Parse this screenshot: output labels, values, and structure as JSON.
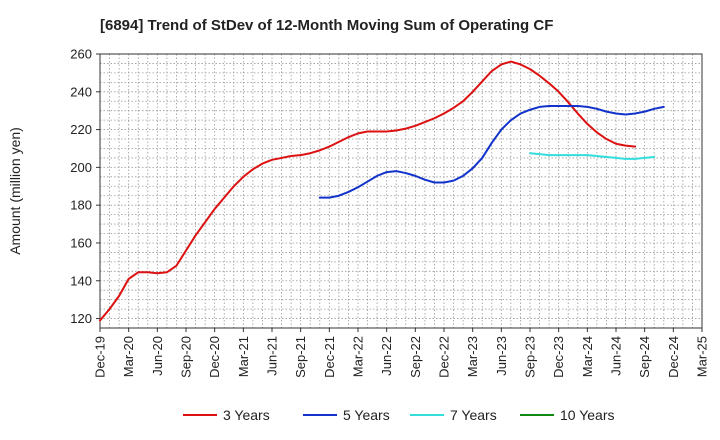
{
  "chart_data": {
    "type": "line",
    "title": "[6894]  Trend of StDev of 12-Month Moving Sum of Operating CF",
    "xlabel": "",
    "ylabel": "Amount (million yen)",
    "ylim": [
      115,
      260
    ],
    "yticks": [
      120,
      140,
      160,
      180,
      200,
      220,
      240,
      260
    ],
    "xticks": [
      "Dec-19",
      "Mar-20",
      "Jun-20",
      "Sep-20",
      "Dec-20",
      "Mar-21",
      "Jun-21",
      "Sep-21",
      "Dec-21",
      "Mar-22",
      "Jun-22",
      "Sep-22",
      "Dec-22",
      "Mar-23",
      "Jun-23",
      "Sep-23",
      "Dec-23",
      "Mar-24",
      "Jun-24",
      "Sep-24",
      "Dec-24",
      "Mar-25"
    ],
    "grid": true,
    "legend_position": "bottom",
    "series": [
      {
        "name": "3 Years",
        "color": "#dd1111",
        "start": "Dec-19",
        "values": [
          119,
          125,
          132,
          141,
          144.5,
          144.5,
          144,
          144.5,
          148,
          156,
          164,
          171,
          178,
          184,
          190,
          195,
          199,
          202,
          204,
          205,
          206,
          206.5,
          207.5,
          209,
          211,
          213.5,
          216,
          218,
          219,
          219,
          219,
          219.5,
          220.5,
          222,
          224,
          226,
          228.5,
          231.5,
          235,
          240,
          245.5,
          251,
          254.5,
          256,
          254.5,
          252,
          248.5,
          244.5,
          240,
          234.5,
          228.5,
          223,
          218.5,
          215,
          212.5,
          211.5,
          211
        ]
      },
      {
        "name": "5 Years",
        "color": "#1133cc",
        "start": "Nov-21",
        "values": [
          184,
          184,
          185,
          187,
          189.5,
          192.5,
          195.5,
          197.5,
          198,
          197,
          195.5,
          193.5,
          192,
          192,
          193,
          195.5,
          199.5,
          205,
          213,
          220,
          225,
          228.5,
          230.5,
          232,
          232.5,
          232.5,
          232.5,
          232.5,
          232,
          231,
          229.5,
          228.5,
          228,
          228.5,
          229.5,
          231,
          232
        ]
      },
      {
        "name": "7 Years",
        "color": "#33dddd",
        "start": "Sep-23",
        "values": [
          207.5,
          207,
          206.5,
          206.5,
          206.5,
          206.5,
          206.5,
          206,
          205.5,
          205,
          204.5,
          204.5,
          205,
          205.5
        ]
      },
      {
        "name": "10 Years",
        "color": "#118811",
        "start": "Sep-24",
        "values": []
      }
    ]
  }
}
